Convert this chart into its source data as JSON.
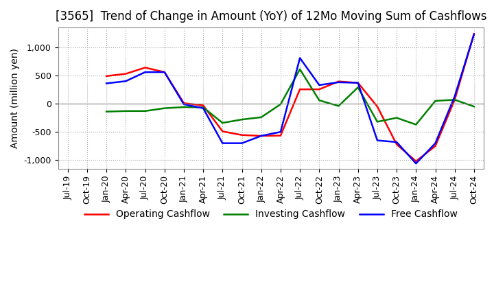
{
  "title": "[3565]  Trend of Change in Amount (YoY) of 12Mo Moving Sum of Cashflows",
  "ylabel": "Amount (million yen)",
  "ylim": [
    -1150,
    1350
  ],
  "yticks": [
    -1000,
    -500,
    0,
    500,
    1000
  ],
  "x_labels": [
    "Jul-19",
    "Oct-19",
    "Jan-20",
    "Apr-20",
    "Jul-20",
    "Oct-20",
    "Jan-21",
    "Apr-21",
    "Jul-21",
    "Oct-21",
    "Jan-22",
    "Apr-22",
    "Jul-22",
    "Oct-22",
    "Jan-23",
    "Apr-23",
    "Jul-23",
    "Oct-23",
    "Jan-24",
    "Apr-24",
    "Jul-24",
    "Oct-24"
  ],
  "operating_cashflow": [
    null,
    null,
    490,
    530,
    640,
    560,
    10,
    -30,
    -490,
    -555,
    -570,
    -565,
    255,
    255,
    395,
    370,
    -50,
    -720,
    -1020,
    -750,
    70,
    1240
  ],
  "investing_cashflow": [
    null,
    null,
    -140,
    -130,
    -130,
    -80,
    -60,
    -65,
    -340,
    -280,
    -240,
    -10,
    610,
    60,
    -40,
    290,
    -320,
    -250,
    -370,
    50,
    70,
    -50
  ],
  "free_cashflow": [
    null,
    null,
    360,
    400,
    560,
    560,
    -10,
    -80,
    -700,
    -700,
    -570,
    -500,
    810,
    330,
    380,
    370,
    -650,
    -680,
    -1060,
    -700,
    130,
    1230
  ],
  "operating_color": "#ff0000",
  "investing_color": "#008000",
  "free_color": "#0000ff",
  "background_color": "#ffffff",
  "grid_color": "#aaaaaa",
  "title_fontsize": 12,
  "label_fontsize": 10,
  "tick_fontsize": 9,
  "line_width": 1.8
}
